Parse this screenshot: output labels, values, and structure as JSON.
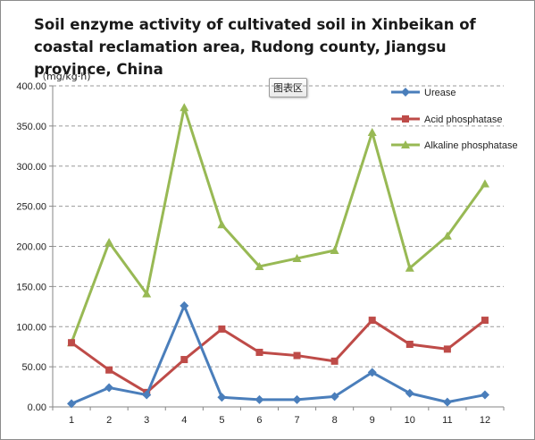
{
  "chart_data": {
    "type": "line",
    "title": "Soil enzyme activity of cultivated soil in Xinbeikan of coastal reclamation area, Rudong county, Jiangsu province, China",
    "ylabel": "（mg/kg·h)",
    "xlabel": "",
    "area_label": "图表区",
    "categories": [
      "1",
      "2",
      "3",
      "4",
      "5",
      "6",
      "7",
      "8",
      "9",
      "10",
      "11",
      "12"
    ],
    "y_ticks": [
      "0.00",
      "50.00",
      "100.00",
      "150.00",
      "200.00",
      "250.00",
      "300.00",
      "350.00",
      "400.00"
    ],
    "ylim": [
      0,
      400
    ],
    "grid": "horizontal dashed",
    "legend_position": "top-right",
    "series": [
      {
        "name": "Urease",
        "color": "#4a7ebb",
        "marker": "diamond",
        "values": [
          4,
          24,
          15,
          126,
          12,
          9,
          9,
          13,
          43,
          17,
          6,
          15
        ]
      },
      {
        "name": "Acid phosphatase",
        "color": "#be4b48",
        "marker": "square",
        "values": [
          80,
          46,
          18,
          59,
          97,
          68,
          64,
          57,
          108,
          78,
          72,
          108
        ]
      },
      {
        "name": "Alkaline phosphatase",
        "color": "#98b954",
        "marker": "triangle",
        "values": [
          80,
          205,
          141,
          373,
          227,
          175,
          185,
          195,
          342,
          173,
          213,
          278
        ]
      }
    ]
  }
}
